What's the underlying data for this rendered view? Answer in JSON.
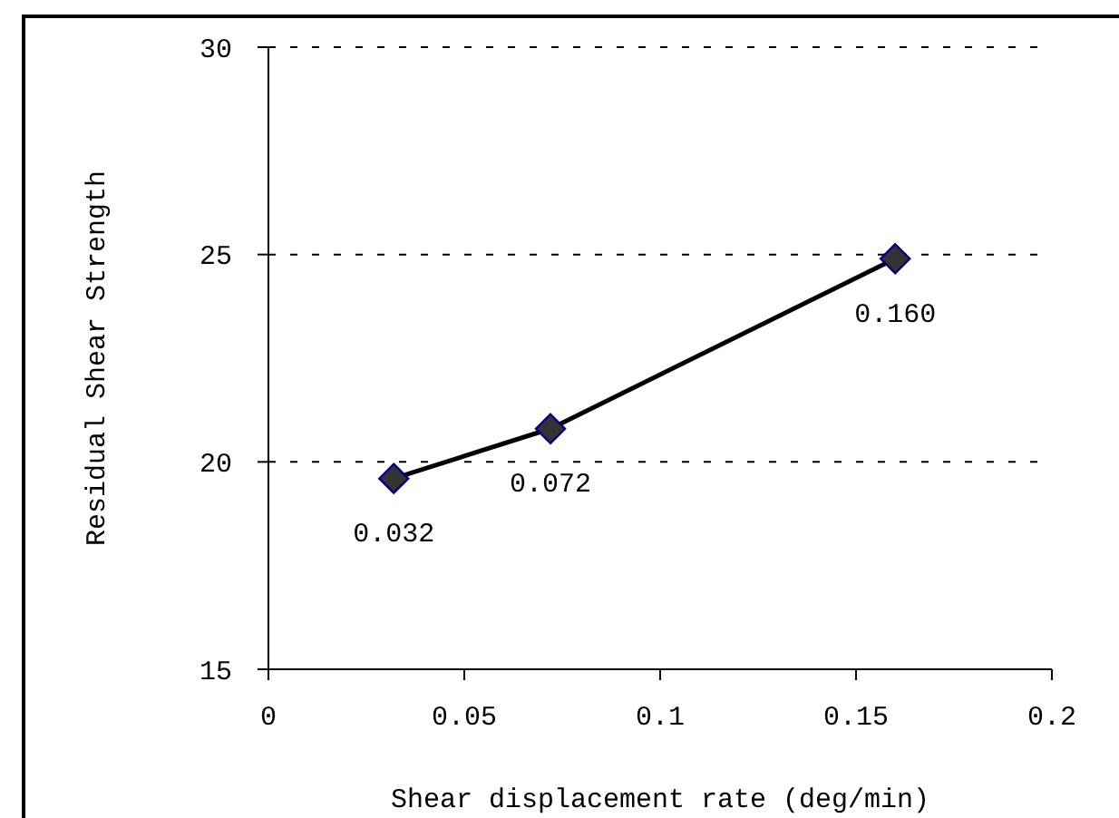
{
  "chart_data": {
    "type": "line",
    "xlabel": "Shear displacement rate (deg/min)",
    "ylabel": "Residual Shear Strength",
    "x": [
      0.032,
      0.072,
      0.16
    ],
    "series": [
      {
        "color": "#000000",
        "values": [
          19.6,
          20.8,
          24.9
        ]
      }
    ],
    "annotations": [
      {
        "text": "0.032",
        "x": 0.032,
        "y": 19.6
      },
      {
        "text": "0.072",
        "x": 0.072,
        "y": 20.8
      },
      {
        "text": "0.160",
        "x": 0.16,
        "y": 24.9
      }
    ],
    "xlim": [
      0,
      0.2
    ],
    "xticks": [
      0,
      0.05,
      0.1,
      0.15,
      0.2
    ],
    "ylim": [
      15,
      30
    ],
    "yticks": [
      15,
      20,
      25,
      30
    ],
    "grid": "y",
    "marker": "diamond",
    "line_style": "solid",
    "legend": false
  }
}
